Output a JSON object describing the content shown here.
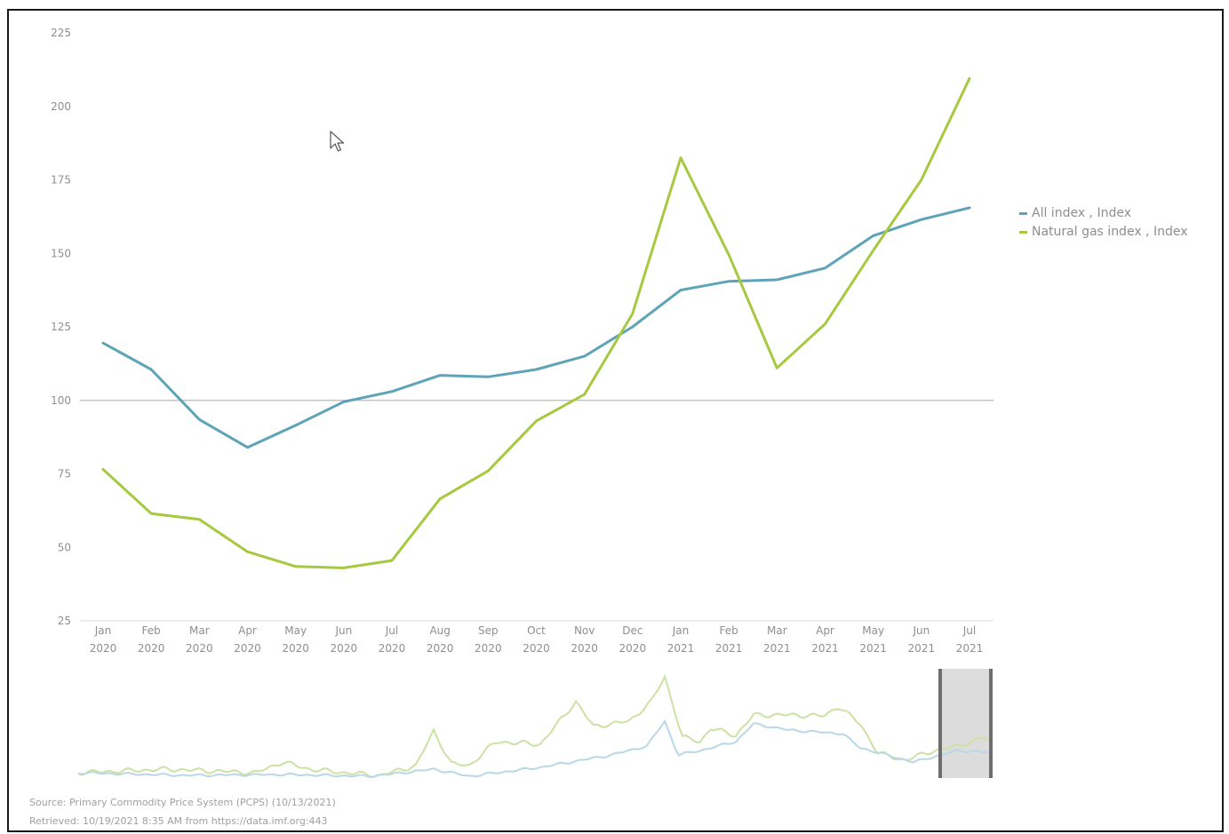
{
  "chart_data": {
    "type": "line",
    "categories": [
      [
        "Jan",
        "2020"
      ],
      [
        "Feb",
        "2020"
      ],
      [
        "Mar",
        "2020"
      ],
      [
        "Apr",
        "2020"
      ],
      [
        "May",
        "2020"
      ],
      [
        "Jun",
        "2020"
      ],
      [
        "Jul",
        "2020"
      ],
      [
        "Aug",
        "2020"
      ],
      [
        "Sep",
        "2020"
      ],
      [
        "Oct",
        "2020"
      ],
      [
        "Nov",
        "2020"
      ],
      [
        "Dec",
        "2020"
      ],
      [
        "Jan",
        "2021"
      ],
      [
        "Feb",
        "2021"
      ],
      [
        "Mar",
        "2021"
      ],
      [
        "Apr",
        "2021"
      ],
      [
        "May",
        "2021"
      ],
      [
        "Jun",
        "2021"
      ],
      [
        "Jul",
        "2021"
      ]
    ],
    "series": [
      {
        "name": "All index , Index",
        "color": "#5fa3b8",
        "values": [
          119.5,
          110.5,
          93.5,
          84,
          91.5,
          99.5,
          103,
          108.5,
          108,
          110.5,
          115,
          125,
          137.5,
          140.5,
          141,
          145,
          156,
          161.5,
          165.5
        ]
      },
      {
        "name": "Natural gas index , Index",
        "color": "#a6c93f",
        "values": [
          76.5,
          61.5,
          59.5,
          48.5,
          43.5,
          43,
          45.5,
          66.5,
          76,
          93,
          102,
          129.5,
          182.5,
          149.5,
          111,
          126,
          151,
          175,
          209.5
        ]
      }
    ],
    "ylim": [
      25,
      225
    ],
    "yticks": [
      25,
      50,
      75,
      100,
      125,
      150,
      175,
      200,
      225
    ],
    "reference_line": 100,
    "legend_position": "right",
    "grid": false,
    "navigator": {
      "all_index_color": "#b8d8e6",
      "natural_gas_color": "#cde1a3",
      "selection_fill": "#dcdcdc"
    }
  },
  "source_text": "Source: Primary Commodity Price System (PCPS) (10/13/2021)",
  "retrieved_text": "Retrieved: 10/19/2021 8:35 AM from https://data.imf.org:443"
}
